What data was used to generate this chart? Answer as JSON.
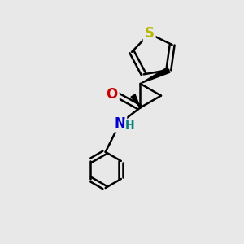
{
  "background_color": "#e8e8e8",
  "bond_color": "#000000",
  "S_color": "#b8b800",
  "O_color": "#cc0000",
  "N_color": "#0000cc",
  "H_color": "#008080",
  "bond_width": 1.8,
  "figsize": [
    3.0,
    3.0
  ],
  "dpi": 100,
  "xlim": [
    0,
    10
  ],
  "ylim": [
    0,
    10
  ]
}
